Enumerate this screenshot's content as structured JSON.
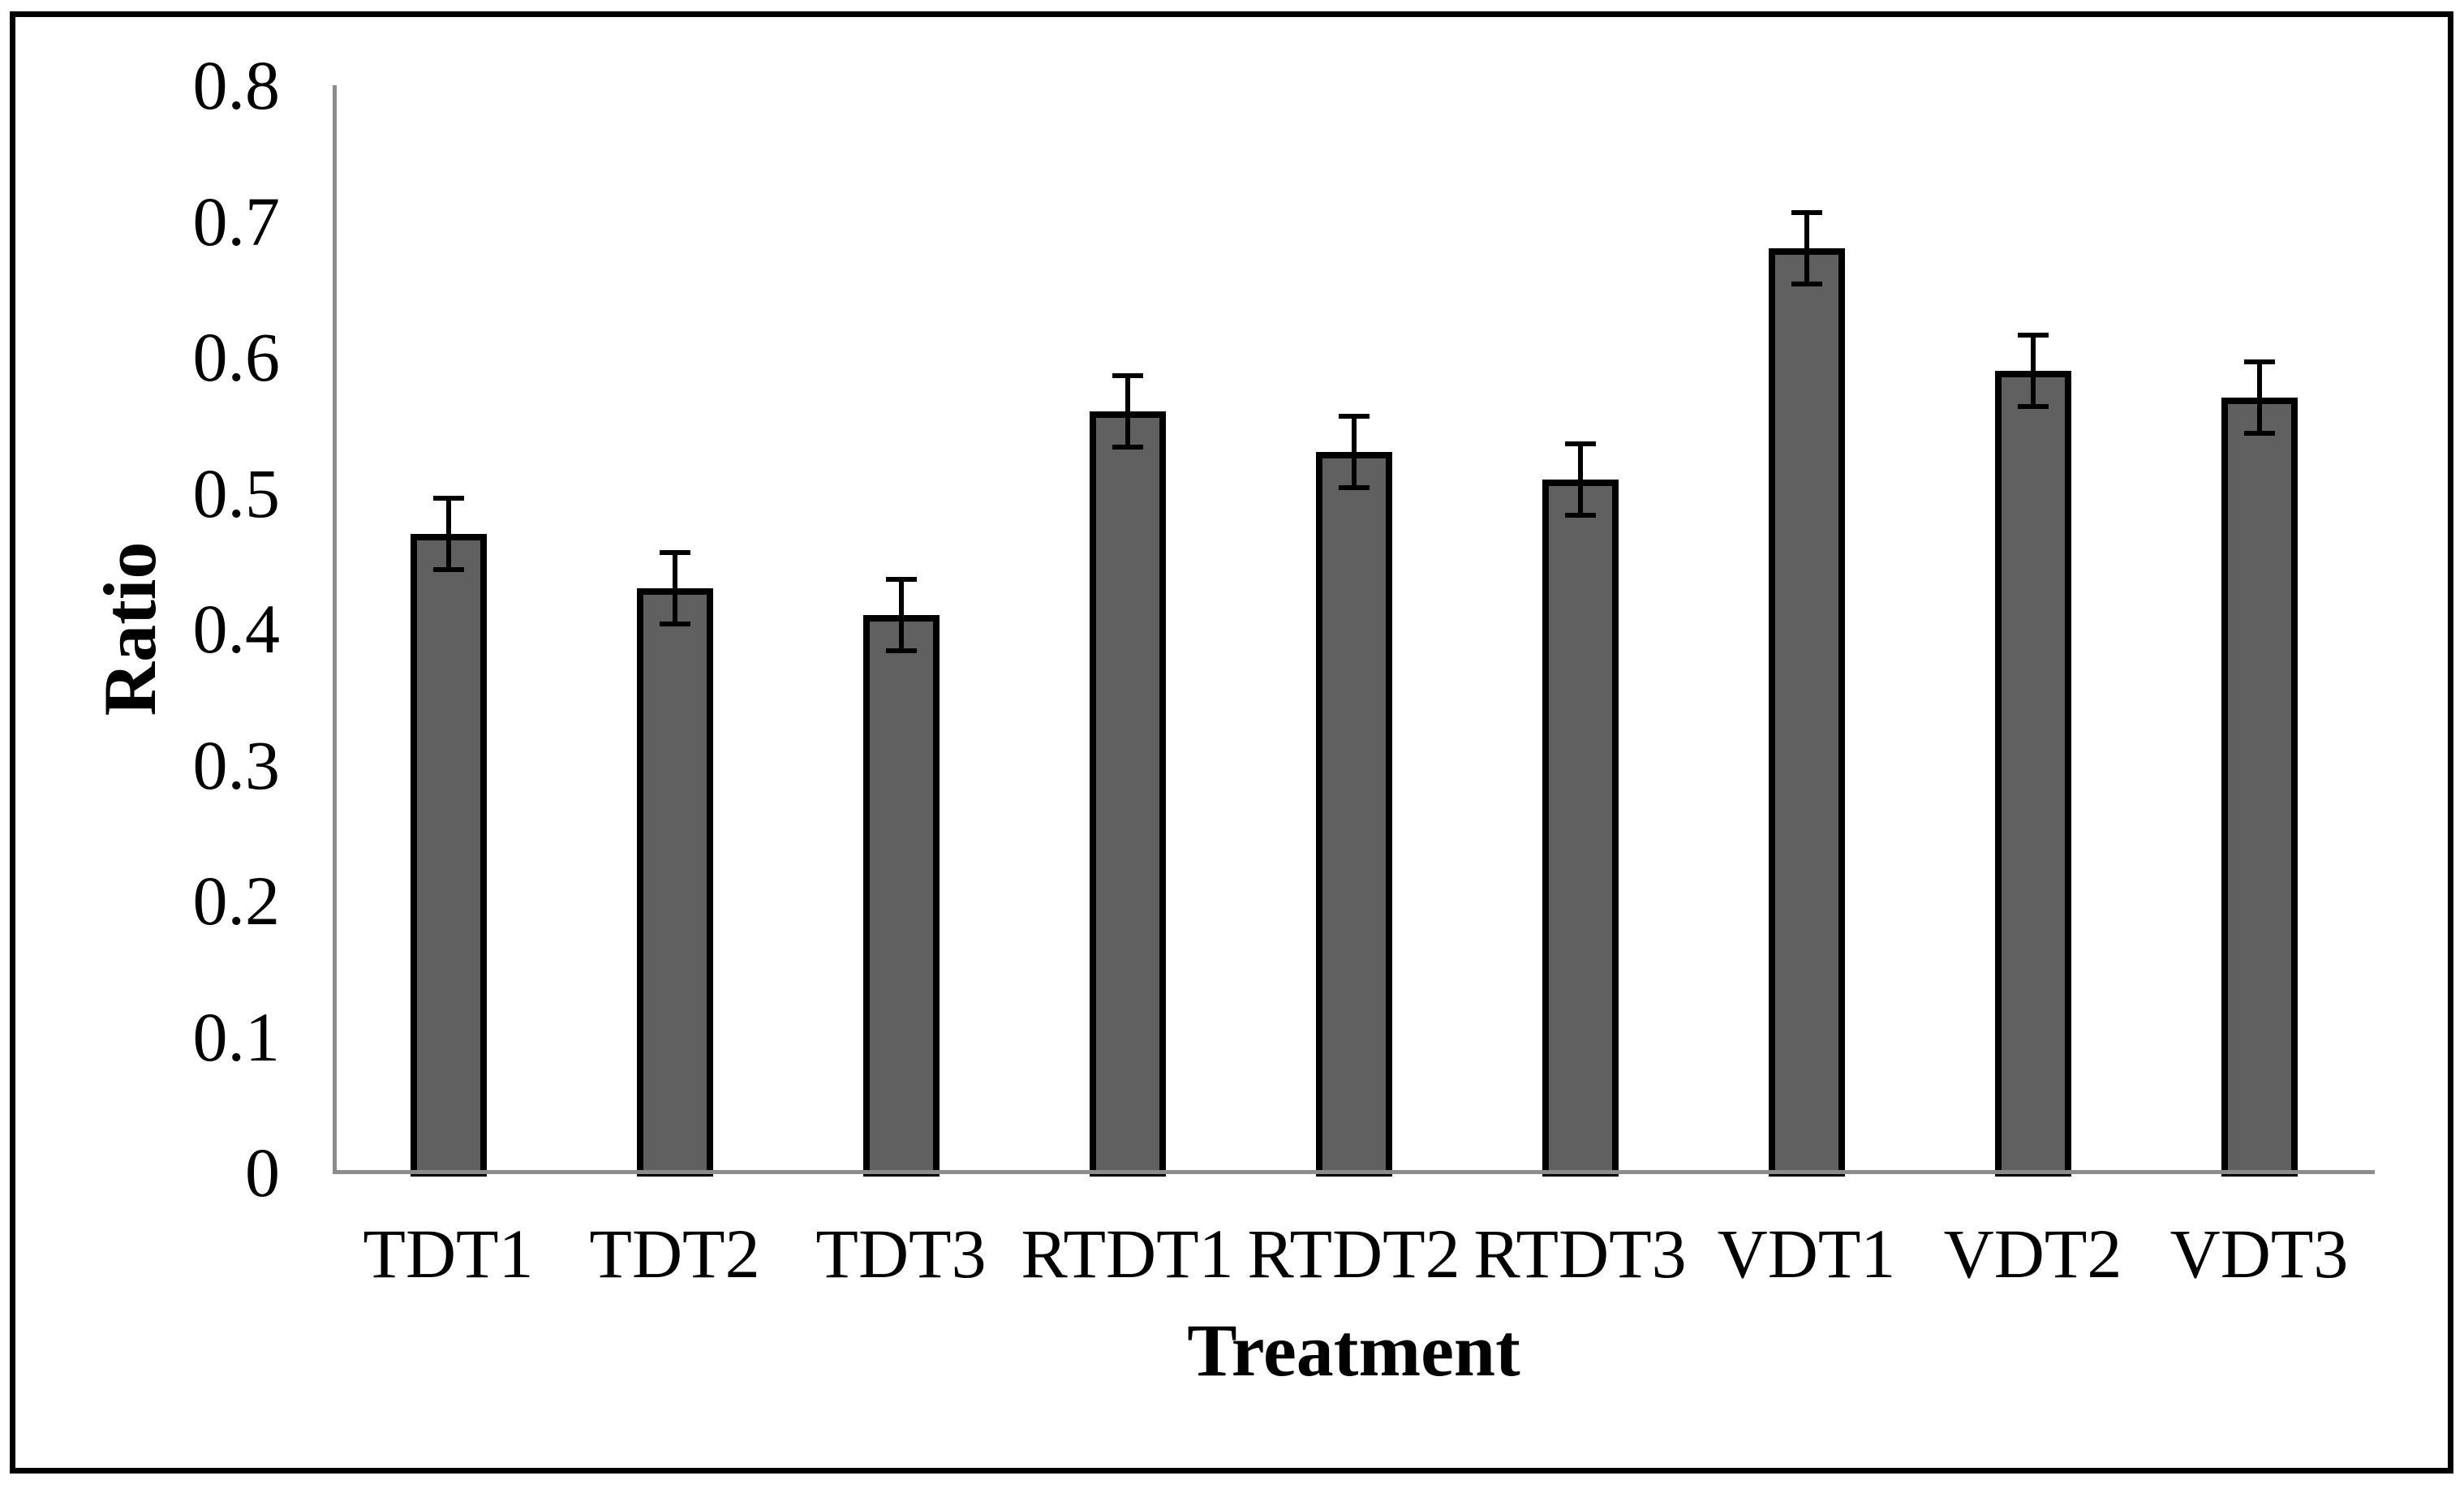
{
  "chart_data": {
    "type": "bar",
    "title": "",
    "xlabel": "Treatment",
    "ylabel": "Ratio",
    "categories": [
      "TDT1",
      "TDT2",
      "TDT3",
      "RTDT1",
      "RTDT2",
      "RTDT3",
      "VDT1",
      "VDT2",
      "VDT3"
    ],
    "values": [
      0.47,
      0.43,
      0.41,
      0.56,
      0.53,
      0.51,
      0.68,
      0.59,
      0.57
    ],
    "errors": [
      0.028,
      0.028,
      0.028,
      0.028,
      0.028,
      0.028,
      0.028,
      0.028,
      0.028
    ],
    "error_bar_style": "plus-minus, black caps",
    "ytick_labels": [
      "0.8",
      "0.7",
      "0.6",
      "0.5",
      "0.4",
      "0.3",
      "0.2",
      "0.1",
      "0"
    ],
    "ytick_values": [
      0.8,
      0.7,
      0.6,
      0.5,
      0.4,
      0.3,
      0.2,
      0.1,
      0
    ],
    "ylim": [
      0,
      0.8
    ],
    "grid": false,
    "legend": false,
    "colors": {
      "bar_fill": "#606060",
      "bar_border": "#000000",
      "error_bar": "#000000",
      "axis_line": "#8C8C8C",
      "text": "#000000",
      "frame_border": "#000000",
      "background": "#FFFFFF"
    }
  }
}
